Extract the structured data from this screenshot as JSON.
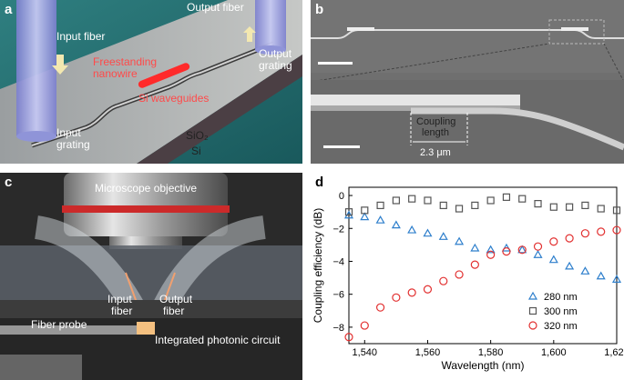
{
  "panel_a": {
    "label": "a",
    "input_fiber": "Input fiber",
    "output_fiber": "Output fiber",
    "output_grating_1": "Output",
    "output_grating_2": "grating",
    "nanowire_1": "Freestanding",
    "nanowire_2": "nanowire",
    "si_waveguides": "Si waveguides",
    "input_grating_1": "Input",
    "input_grating_2": "grating",
    "sio2": "SiO₂",
    "si": "Si"
  },
  "panel_b": {
    "label": "b",
    "coupling_1": "Coupling",
    "coupling_2": "length",
    "coupling_value": "2.3 μm"
  },
  "panel_c": {
    "label": "c",
    "objective": "Microscope objective",
    "input_fiber_1": "Input",
    "input_fiber_2": "fiber",
    "output_fiber_1": "Output",
    "output_fiber_2": "fiber",
    "fiber_probe": "Fiber probe",
    "circuit": "Integrated photonic circuit"
  },
  "panel_d": {
    "label": "d"
  },
  "chart_data": {
    "type": "scatter",
    "xlabel": "Wavelength (nm)",
    "ylabel": "Coupling efficiency (dB)",
    "xlim": [
      1535,
      1620
    ],
    "ylim": [
      -9,
      0.5
    ],
    "xticks": [
      1540,
      1560,
      1580,
      1600,
      1620
    ],
    "xtick_labels": [
      "1,540",
      "1,560",
      "1,580",
      "1,600",
      "1,620"
    ],
    "yticks": [
      0,
      -2,
      -4,
      -6,
      -8
    ],
    "ytick_labels": [
      "0",
      "−2",
      "−4",
      "−6",
      "−8"
    ],
    "legend_position": "bottom-right",
    "series": [
      {
        "name": "280 nm",
        "marker": "triangle",
        "color": "#2e7fcc",
        "x": [
          1535,
          1540,
          1545,
          1550,
          1555,
          1560,
          1565,
          1570,
          1575,
          1580,
          1585,
          1590,
          1595,
          1600,
          1605,
          1610,
          1615,
          1620
        ],
        "y": [
          -1.2,
          -1.3,
          -1.5,
          -1.8,
          -2.1,
          -2.3,
          -2.5,
          -2.8,
          -3.2,
          -3.3,
          -3.2,
          -3.3,
          -3.6,
          -3.9,
          -4.3,
          -4.6,
          -4.9,
          -5.1
        ]
      },
      {
        "name": "300 nm",
        "marker": "square",
        "color": "#555555",
        "x": [
          1535,
          1540,
          1545,
          1550,
          1555,
          1560,
          1565,
          1570,
          1575,
          1580,
          1585,
          1590,
          1595,
          1600,
          1605,
          1610,
          1615,
          1620
        ],
        "y": [
          -1.0,
          -0.9,
          -0.6,
          -0.3,
          -0.2,
          -0.3,
          -0.6,
          -0.8,
          -0.6,
          -0.3,
          -0.1,
          -0.2,
          -0.5,
          -0.7,
          -0.7,
          -0.6,
          -0.8,
          -0.9
        ]
      },
      {
        "name": "320 nm",
        "marker": "circle",
        "color": "#e23030",
        "x": [
          1535,
          1540,
          1545,
          1550,
          1555,
          1560,
          1565,
          1570,
          1575,
          1580,
          1585,
          1590,
          1595,
          1600,
          1605,
          1610,
          1615,
          1620
        ],
        "y": [
          -8.6,
          -7.9,
          -6.8,
          -6.2,
          -5.9,
          -5.7,
          -5.2,
          -4.8,
          -4.2,
          -3.6,
          -3.4,
          -3.3,
          -3.1,
          -2.8,
          -2.6,
          -2.3,
          -2.2,
          -2.1
        ]
      }
    ]
  }
}
